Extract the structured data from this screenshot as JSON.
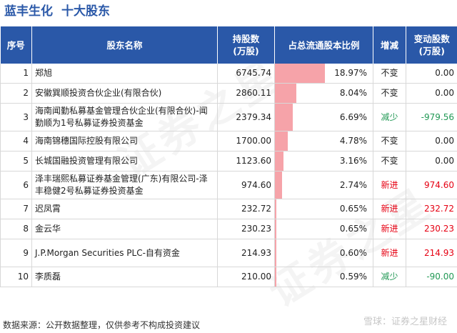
{
  "title": "蓝丰生化",
  "subtitle": "十大股东",
  "headers": {
    "index": "序号",
    "name": "股东名称",
    "shares": "持股数(万股)",
    "ratio": "占总流通股本比例",
    "change_type": "增减",
    "change_amount": "变动股数(万股)"
  },
  "rows": [
    {
      "index": "1",
      "name": "郑旭",
      "shares": "6745.74",
      "ratio": "18.97%",
      "ratio_value": 18.97,
      "change_type": "不变",
      "change_amount": "0.00"
    },
    {
      "index": "2",
      "name": "安徽巽顺投资合伙企业(有限合伙)",
      "shares": "2860.11",
      "ratio": "8.04%",
      "ratio_value": 8.04,
      "change_type": "不变",
      "change_amount": "0.00"
    },
    {
      "index": "3",
      "name": "海南闻勤私募基金管理合伙企业(有限合伙)-闻勤顺为1号私募证券投资基金",
      "shares": "2379.34",
      "ratio": "6.69%",
      "ratio_value": 6.69,
      "change_type": "减少",
      "change_amount": "-979.56"
    },
    {
      "index": "4",
      "name": "海南锦穗国际控股有限公司",
      "shares": "1700.00",
      "ratio": "4.78%",
      "ratio_value": 4.78,
      "change_type": "不变",
      "change_amount": "0.00"
    },
    {
      "index": "5",
      "name": "长城国融投资管理有限公司",
      "shares": "1123.60",
      "ratio": "3.16%",
      "ratio_value": 3.16,
      "change_type": "不变",
      "change_amount": "0.00"
    },
    {
      "index": "6",
      "name": "泽丰瑞熙私募证券基金管理(广东)有限公司-泽丰稳健2号私募证券投资基金",
      "shares": "974.60",
      "ratio": "2.74%",
      "ratio_value": 2.74,
      "change_type": "新进",
      "change_amount": "974.60"
    },
    {
      "index": "7",
      "name": "迟凤霄",
      "shares": "232.72",
      "ratio": "0.65%",
      "ratio_value": 0.65,
      "change_type": "新进",
      "change_amount": "232.72"
    },
    {
      "index": "8",
      "name": "金云华",
      "shares": "230.23",
      "ratio": "0.65%",
      "ratio_value": 0.65,
      "change_type": "新进",
      "change_amount": "230.23"
    },
    {
      "index": "9",
      "name": "J.P.Morgan Securities PLC-自有资金",
      "shares": "214.93",
      "ratio": "0.60%",
      "ratio_value": 0.6,
      "change_type": "新进",
      "change_amount": "214.93"
    },
    {
      "index": "10",
      "name": "李质磊",
      "shares": "210.00",
      "ratio": "0.59%",
      "ratio_value": 0.59,
      "change_type": "减少",
      "change_amount": "-90.00"
    }
  ],
  "footer": "数据来源：公开数据整理，仅供参考不构成投资建议",
  "watermark": "雪球：证券之星财经",
  "colors": {
    "header_bg": "#2a58a8",
    "bar": "#f6a3a9",
    "increase": "#e60012",
    "decrease": "#229955"
  }
}
